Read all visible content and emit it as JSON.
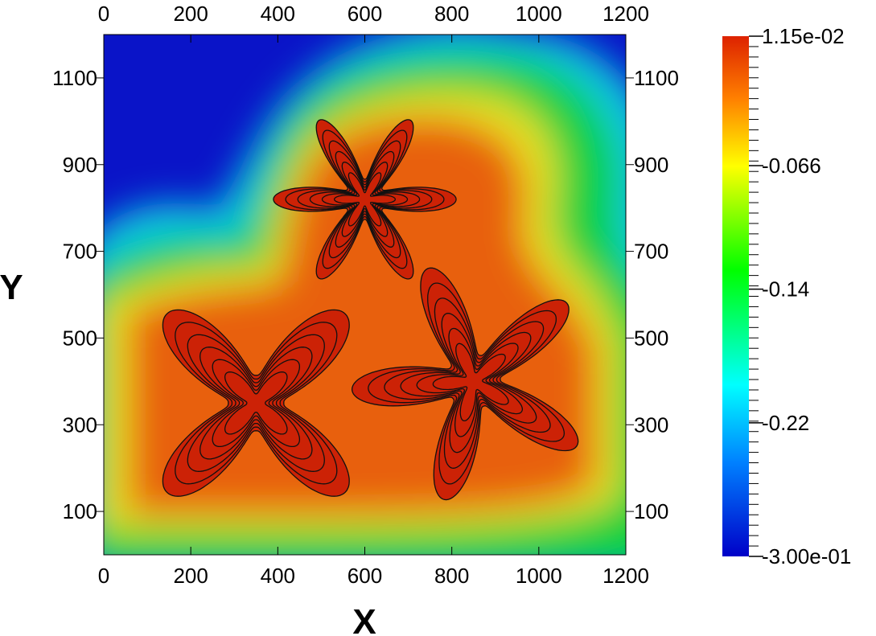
{
  "chart_data": {
    "type": "heatmap",
    "title": "",
    "xlabel": "X",
    "ylabel": "Y",
    "xlim": [
      0,
      1200
    ],
    "ylim": [
      0,
      1200
    ],
    "x_ticks": [
      "0",
      "200",
      "400",
      "600",
      "800",
      "1000",
      "1200"
    ],
    "y_ticks": [
      "100",
      "300",
      "500",
      "700",
      "900",
      "1100"
    ],
    "x_tick_values": [
      0,
      200,
      400,
      600,
      800,
      1000,
      1200
    ],
    "y_tick_values": [
      100,
      300,
      500,
      700,
      900,
      1100
    ],
    "colorbar": {
      "min": -0.3,
      "max": 0.0115,
      "label_values": [
        0.0115,
        -0.066,
        -0.14,
        -0.22,
        -0.3
      ],
      "labels": [
        "1.15e-02",
        "-0.066",
        "-0.14",
        "-0.22",
        "-3.00e-01"
      ],
      "colormap": [
        "#0000c8",
        "#0080ff",
        "#00ffff",
        "#00ff00",
        "#ffff00",
        "#ff8000",
        "#dd2200"
      ]
    },
    "features": [
      {
        "name": "four-petal crystal",
        "center": [
          350,
          350
        ],
        "petals": 4,
        "outer_radius": 290,
        "rotation_deg": 45
      },
      {
        "name": "six-petal crystal (top)",
        "center": [
          600,
          820
        ],
        "petals": 6,
        "outer_radius": 210,
        "rotation_deg": 0
      },
      {
        "name": "five-petal crystal (right)",
        "center": [
          850,
          400
        ],
        "petals": 5,
        "outer_radius": 280,
        "rotation_deg": 40
      }
    ],
    "contours_per_feature": 6,
    "grid": false
  }
}
